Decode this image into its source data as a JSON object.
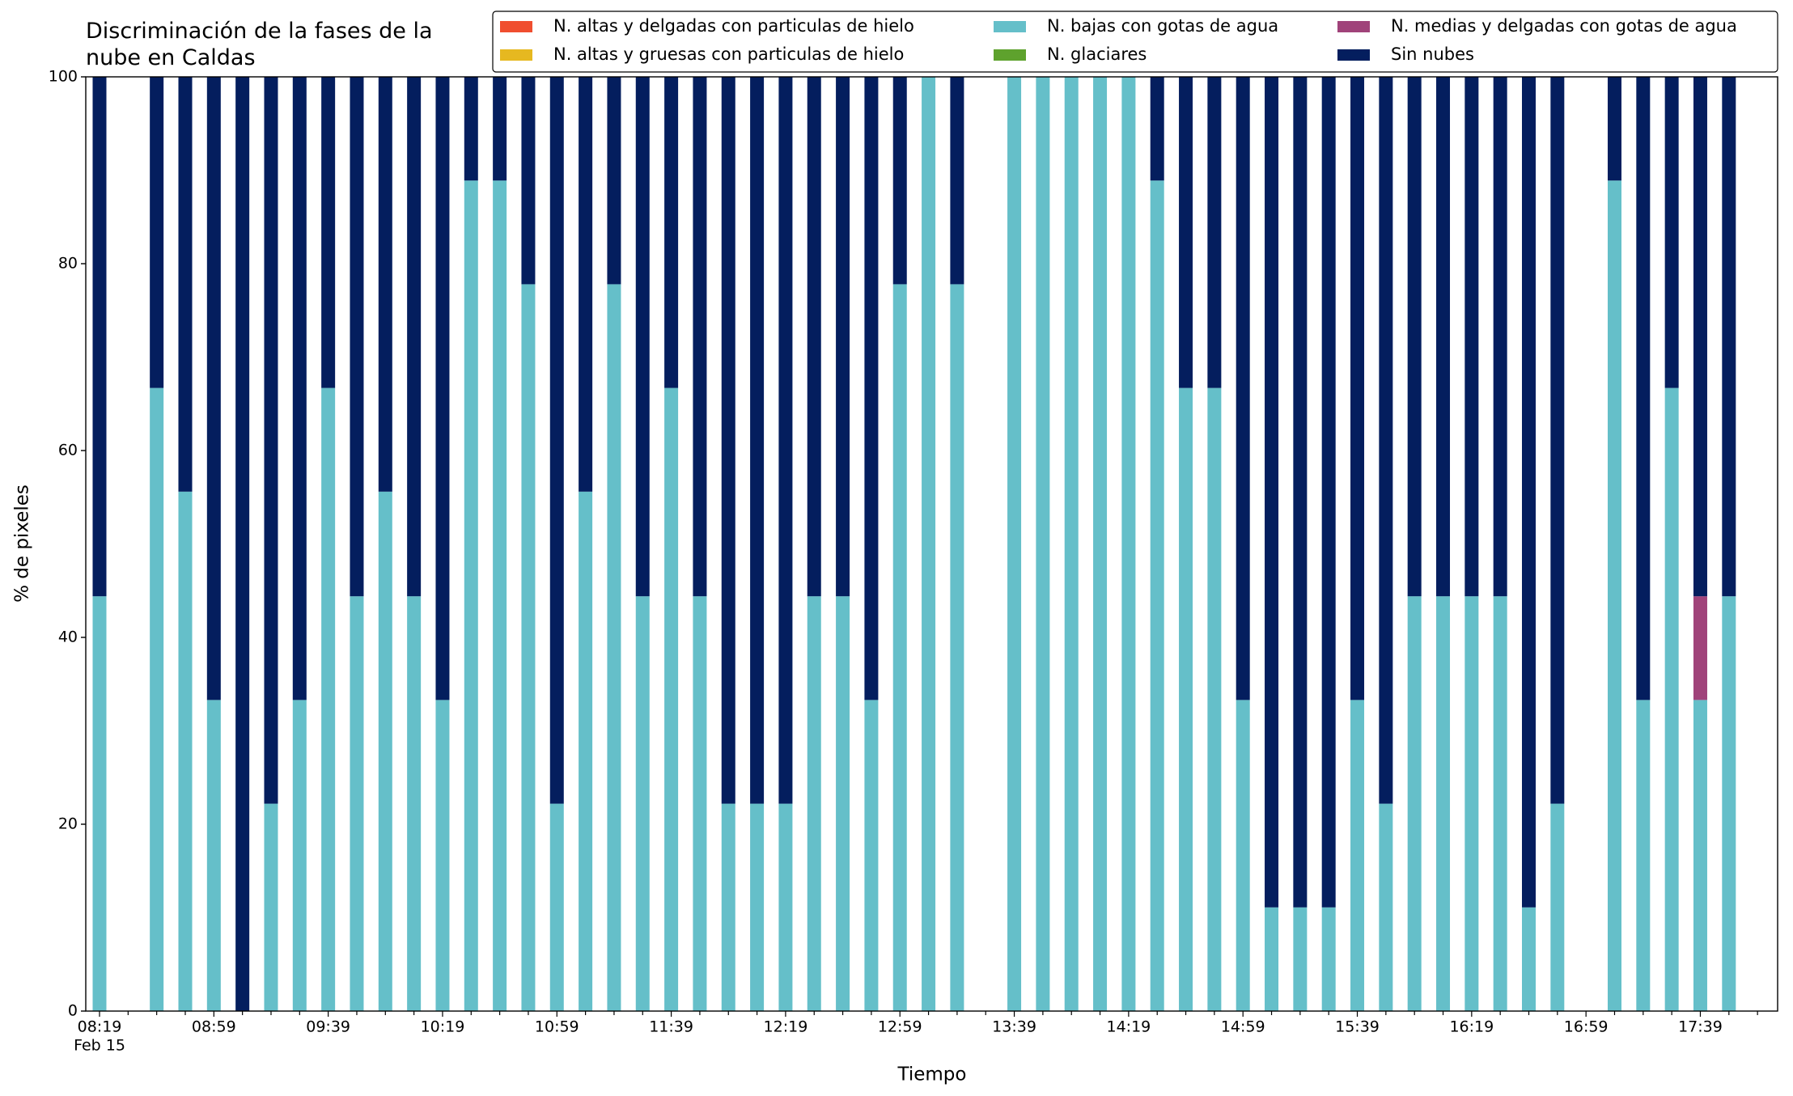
{
  "chart_data": {
    "type": "stacked_bar",
    "title": "Discriminación de la fases de la\nnube en Caldas",
    "x_label": "Tiempo",
    "y_label": "% de pixeles",
    "x_date": "Feb 15",
    "categories": [
      "08:19",
      null,
      null,
      null,
      "08:59",
      null,
      null,
      null,
      "09:39",
      null,
      null,
      null,
      "10:19",
      null,
      null,
      null,
      "10:59",
      null,
      null,
      null,
      "11:39",
      null,
      null,
      null,
      "12:19",
      null,
      null,
      null,
      "12:59",
      null,
      null,
      null,
      "13:39",
      null,
      null,
      null,
      "14:19",
      null,
      null,
      null,
      "14:59",
      null,
      null,
      null,
      "15:39",
      null,
      null,
      null,
      "16:19",
      null,
      null,
      null,
      "16:59",
      null,
      null,
      null,
      "17:39",
      null
    ],
    "ylim": [
      0,
      100
    ],
    "yticks": [
      0,
      20,
      40,
      60,
      80,
      100
    ],
    "grid": false,
    "series": [
      {
        "name": "N. altas y delgadas con particulas de hielo",
        "color": "#f04e2f",
        "values": [
          0,
          null,
          0,
          0,
          0,
          0,
          0,
          0,
          0,
          0,
          0,
          0,
          0,
          0,
          0,
          0,
          0,
          0,
          0,
          0,
          0,
          0,
          0,
          0,
          0,
          0,
          0,
          0,
          0,
          0,
          0,
          null,
          0,
          0,
          0,
          0,
          0,
          0,
          0,
          0,
          0,
          0,
          0,
          0,
          0,
          0,
          0,
          0,
          0,
          0,
          0,
          0,
          null,
          0,
          0,
          0,
          0,
          0
        ]
      },
      {
        "name": "N. altas y gruesas con particulas de hielo",
        "color": "#e6b820",
        "values": [
          0,
          null,
          0,
          0,
          0,
          0,
          0,
          0,
          0,
          0,
          0,
          0,
          0,
          0,
          0,
          0,
          0,
          0,
          0,
          0,
          0,
          0,
          0,
          0,
          0,
          0,
          0,
          0,
          0,
          0,
          0,
          null,
          0,
          0,
          0,
          0,
          0,
          0,
          0,
          0,
          0,
          0,
          0,
          0,
          0,
          0,
          0,
          0,
          0,
          0,
          0,
          0,
          null,
          0,
          0,
          0,
          0,
          0
        ]
      },
      {
        "name": "N. bajas con gotas de agua",
        "color": "#65bfc9",
        "values": [
          44.4,
          null,
          66.7,
          55.6,
          33.3,
          0,
          22.2,
          33.3,
          66.7,
          44.4,
          55.6,
          44.4,
          33.3,
          88.9,
          88.9,
          77.8,
          22.2,
          55.6,
          77.8,
          44.4,
          66.7,
          44.4,
          22.2,
          22.2,
          22.2,
          44.4,
          44.4,
          33.3,
          77.8,
          100,
          77.8,
          null,
          100,
          100,
          100,
          100,
          100,
          88.9,
          66.7,
          66.7,
          33.3,
          11.1,
          11.1,
          11.1,
          33.3,
          22.2,
          44.4,
          44.4,
          44.4,
          44.4,
          11.1,
          22.2,
          null,
          88.9,
          33.3,
          66.7,
          33.3,
          44.4
        ]
      },
      {
        "name": "N. glaciares",
        "color": "#5ea22d",
        "values": [
          0,
          null,
          0,
          0,
          0,
          0,
          0,
          0,
          0,
          0,
          0,
          0,
          0,
          0,
          0,
          0,
          0,
          0,
          0,
          0,
          0,
          0,
          0,
          0,
          0,
          0,
          0,
          0,
          0,
          0,
          0,
          null,
          0,
          0,
          0,
          0,
          0,
          0,
          0,
          0,
          0,
          0,
          0,
          0,
          0,
          0,
          0,
          0,
          0,
          0,
          0,
          0,
          null,
          0,
          0,
          0,
          0,
          0
        ]
      },
      {
        "name": "N. medias y delgadas con gotas de agua",
        "color": "#a0437a",
        "values": [
          0,
          null,
          0,
          0,
          0,
          0,
          0,
          0,
          0,
          0,
          0,
          0,
          0,
          0,
          0,
          0,
          0,
          0,
          0,
          0,
          0,
          0,
          0,
          0,
          0,
          0,
          0,
          0,
          0,
          0,
          0,
          null,
          0,
          0,
          0,
          0,
          0,
          0,
          0,
          0,
          0,
          0,
          0,
          0,
          0,
          0,
          0,
          0,
          0,
          0,
          0,
          0,
          null,
          0,
          0,
          0,
          11.1,
          0
        ]
      },
      {
        "name": "Sin nubes",
        "color": "#041e5e",
        "values": [
          55.6,
          null,
          33.3,
          44.4,
          66.7,
          100,
          77.8,
          66.7,
          33.3,
          55.6,
          44.4,
          55.6,
          66.7,
          11.1,
          11.1,
          22.2,
          77.8,
          44.4,
          22.2,
          55.6,
          33.3,
          55.6,
          77.8,
          77.8,
          77.8,
          55.6,
          55.6,
          66.7,
          22.2,
          0,
          22.2,
          null,
          0,
          0,
          0,
          0,
          0,
          11.1,
          33.3,
          33.3,
          66.7,
          88.9,
          88.9,
          88.9,
          66.7,
          77.8,
          55.6,
          55.6,
          55.6,
          55.6,
          88.9,
          77.8,
          null,
          11.1,
          66.7,
          33.3,
          55.6,
          55.6
        ]
      }
    ]
  }
}
